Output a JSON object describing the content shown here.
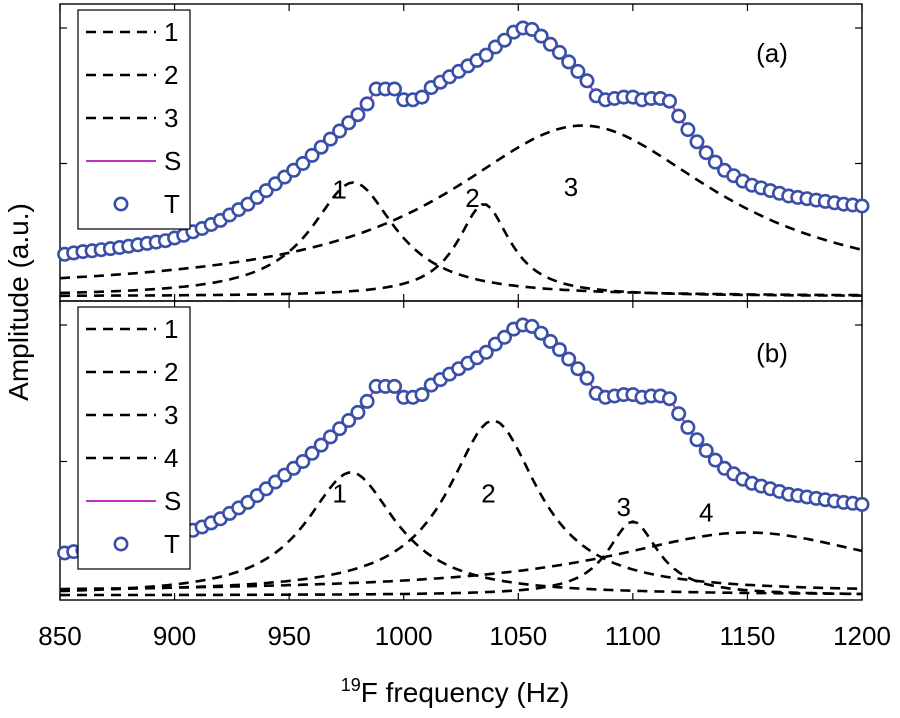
{
  "chart_data": {
    "type": "line",
    "shared": {
      "xlabel_sup": "19",
      "xlabel_main": "F frequency (Hz)",
      "ylabel": "Amplitude (a.u.)",
      "xlim": [
        850,
        1200
      ],
      "x_ticks": [
        850,
        900,
        950,
        1000,
        1050,
        1100,
        1150,
        1200
      ],
      "colors": {
        "components": "#000000",
        "sum": "#c030c0",
        "data": "#3a4fa8"
      }
    },
    "panels": [
      {
        "tag": "(a)",
        "legend_position": "top-left",
        "legend": [
          "1",
          "2",
          "3",
          "S",
          "T"
        ],
        "annotations": [
          {
            "text": "1",
            "x": 972,
            "y": 0.37
          },
          {
            "text": "2",
            "x": 1030,
            "y": 0.34
          },
          {
            "text": "3",
            "x": 1073,
            "y": 0.38
          }
        ],
        "components": [
          {
            "name": "1",
            "center": 978,
            "amplitude": 0.42,
            "width": 45,
            "offset": 0.01
          },
          {
            "name": "2",
            "center": 1035,
            "amplitude": 0.34,
            "width": 28,
            "offset": 0.01
          },
          {
            "name": "3",
            "center": 1078,
            "amplitude": 0.62,
            "width": 145,
            "offset": 0.02
          }
        ]
      },
      {
        "tag": "(b)",
        "legend_position": "top-left",
        "legend": [
          "1",
          "2",
          "3",
          "4",
          "S",
          "T"
        ],
        "annotations": [
          {
            "text": "1",
            "x": 972,
            "y": 0.35
          },
          {
            "text": "2",
            "x": 1037,
            "y": 0.35
          },
          {
            "text": "3",
            "x": 1096,
            "y": 0.3
          },
          {
            "text": "4",
            "x": 1132,
            "y": 0.28
          }
        ],
        "components": [
          {
            "name": "1",
            "center": 977,
            "amplitude": 0.45,
            "width": 48,
            "offset": 0.01
          },
          {
            "name": "2",
            "center": 1039,
            "amplitude": 0.63,
            "width": 48,
            "offset": 0.02
          },
          {
            "name": "3",
            "center": 1100,
            "amplitude": 0.27,
            "width": 27,
            "offset": 0.01
          },
          {
            "name": "4",
            "center": 1150,
            "amplitude": 0.22,
            "width": 150,
            "offset": 0.02
          }
        ]
      }
    ],
    "data_T": {
      "x": [
        852,
        856,
        860,
        864,
        868,
        872,
        876,
        880,
        884,
        888,
        892,
        896,
        900,
        904,
        908,
        912,
        916,
        920,
        924,
        928,
        932,
        936,
        940,
        944,
        948,
        952,
        956,
        960,
        964,
        968,
        972,
        976,
        980,
        984,
        988,
        992,
        996,
        1000,
        1004,
        1008,
        1012,
        1016,
        1020,
        1024,
        1028,
        1032,
        1036,
        1040,
        1044,
        1048,
        1052,
        1056,
        1060,
        1064,
        1068,
        1072,
        1076,
        1080,
        1084,
        1088,
        1092,
        1096,
        1100,
        1104,
        1108,
        1112,
        1116,
        1120,
        1124,
        1128,
        1132,
        1136,
        1140,
        1144,
        1148,
        1152,
        1156,
        1160,
        1164,
        1168,
        1172,
        1176,
        1180,
        1184,
        1188,
        1192,
        1196,
        1200
      ],
      "y": [
        0.165,
        0.17,
        0.175,
        0.178,
        0.182,
        0.186,
        0.19,
        0.195,
        0.2,
        0.205,
        0.21,
        0.215,
        0.225,
        0.235,
        0.248,
        0.26,
        0.275,
        0.29,
        0.31,
        0.33,
        0.35,
        0.375,
        0.4,
        0.425,
        0.45,
        0.475,
        0.5,
        0.53,
        0.56,
        0.59,
        0.62,
        0.65,
        0.68,
        0.72,
        0.775,
        0.775,
        0.775,
        0.735,
        0.735,
        0.745,
        0.78,
        0.8,
        0.82,
        0.84,
        0.86,
        0.88,
        0.9,
        0.93,
        0.955,
        0.985,
        1.0,
        0.995,
        0.97,
        0.94,
        0.91,
        0.875,
        0.84,
        0.805,
        0.75,
        0.735,
        0.74,
        0.745,
        0.745,
        0.735,
        0.74,
        0.74,
        0.73,
        0.675,
        0.625,
        0.58,
        0.54,
        0.505,
        0.475,
        0.455,
        0.435,
        0.42,
        0.41,
        0.4,
        0.39,
        0.38,
        0.375,
        0.37,
        0.365,
        0.36,
        0.355,
        0.35,
        0.347,
        0.343
      ]
    }
  }
}
